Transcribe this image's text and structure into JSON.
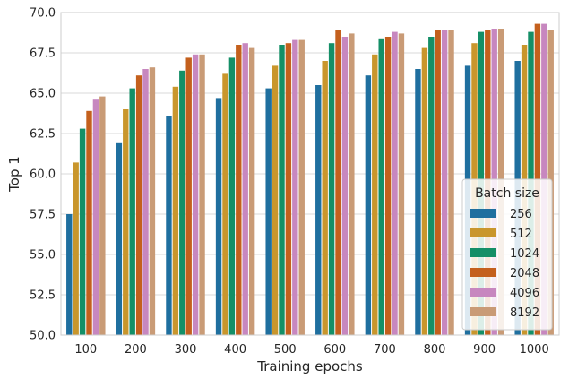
{
  "chart_data": {
    "type": "bar",
    "xlabel": "Training epochs",
    "ylabel": "Top 1",
    "ylim": [
      50.0,
      70.0
    ],
    "yticks": [
      "50.0",
      "52.5",
      "55.0",
      "57.5",
      "60.0",
      "62.5",
      "65.0",
      "67.5",
      "70.0"
    ],
    "grid": "horizontal",
    "legend": {
      "title": "Batch size",
      "placement": "lower-right"
    },
    "categories": [
      "100",
      "200",
      "300",
      "400",
      "500",
      "600",
      "700",
      "800",
      "900",
      "1000"
    ],
    "series": [
      {
        "name": "256",
        "color": "#1f6f9f",
        "values": [
          57.5,
          61.9,
          63.6,
          64.7,
          65.3,
          65.5,
          66.1,
          66.5,
          66.7,
          67.0
        ]
      },
      {
        "name": "512",
        "color": "#c9962c",
        "values": [
          60.7,
          64.0,
          65.4,
          66.2,
          66.7,
          67.0,
          67.4,
          67.8,
          68.1,
          68.0
        ]
      },
      {
        "name": "1024",
        "color": "#148f67",
        "values": [
          62.8,
          65.3,
          66.4,
          67.2,
          68.0,
          68.1,
          68.4,
          68.5,
          68.8,
          68.8
        ]
      },
      {
        "name": "2048",
        "color": "#c4601d",
        "values": [
          63.9,
          66.1,
          67.2,
          68.0,
          68.1,
          68.9,
          68.5,
          68.9,
          68.9,
          69.3
        ]
      },
      {
        "name": "4096",
        "color": "#c787bf",
        "values": [
          64.6,
          66.5,
          67.4,
          68.1,
          68.3,
          68.5,
          68.8,
          68.9,
          69.0,
          69.3
        ]
      },
      {
        "name": "8192",
        "color": "#c99b76",
        "values": [
          64.8,
          66.6,
          67.4,
          67.8,
          68.3,
          68.7,
          68.7,
          68.9,
          69.0,
          68.9
        ]
      }
    ]
  }
}
